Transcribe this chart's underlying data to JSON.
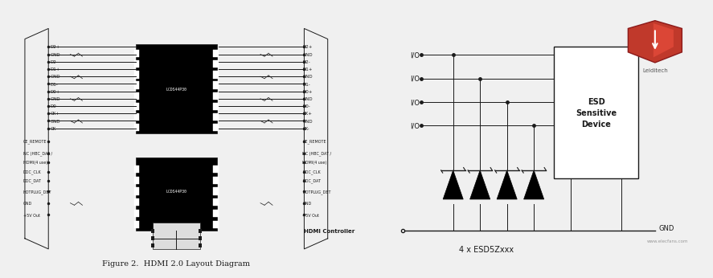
{
  "bg_color": "#f0f0f0",
  "left_diagram": {
    "caption": "Figure 2.  HDMI 2.0 Layout Diagram",
    "left_labels": [
      "D2+",
      "GND",
      "D2-",
      "D1+",
      "GND",
      "D1-",
      "D0+",
      "GND",
      "D0-",
      "CK+",
      "GND",
      "CK-"
    ],
    "right_labels": [
      "D2+",
      "GND",
      "D2-",
      "D1+",
      "GND",
      "D1-",
      "D0+",
      "GND",
      "D0-",
      "CK+",
      "GND",
      "CK-"
    ],
    "bottom_left_labels": [
      "CE_REMOTE",
      "NC (HBC_DAT /\nHDMI(4 use)",
      "DDC_CLK",
      "DDC_DAT",
      "HOTPLUG_DET",
      "GND",
      "+5V Out"
    ],
    "bottom_right_labels": [
      "CE_REMOTE",
      "NC (HBC_DAT /\nHDMI(4 use)",
      "DDC_CLK",
      "DDC_DAT",
      "HOTPLUG_DET",
      "GND",
      "+5V Out"
    ],
    "ic1_label": "LCDS44P30",
    "ic2_label": "LCDS44P30",
    "hdmi_controller": "HDMI Controller"
  },
  "right_diagram": {
    "io_labels": [
      "I/O",
      "I/O",
      "I/O",
      "I/O"
    ],
    "esd_device_label": "ESD\nSensitive\nDevice",
    "gnd_label": "GND",
    "bottom_label": "4 x ESD5Zxxx",
    "logo_text": "Leiditech",
    "shield_color_outer": "#c0392b",
    "shield_color_inner": "#e74c3c",
    "watermark_color": "#cc4400"
  },
  "line_color": "#1a1a1a",
  "text_color": "#1a1a1a",
  "white": "#ffffff",
  "black": "#000000",
  "gray": "#888888",
  "light_gray": "#e8e8e8"
}
